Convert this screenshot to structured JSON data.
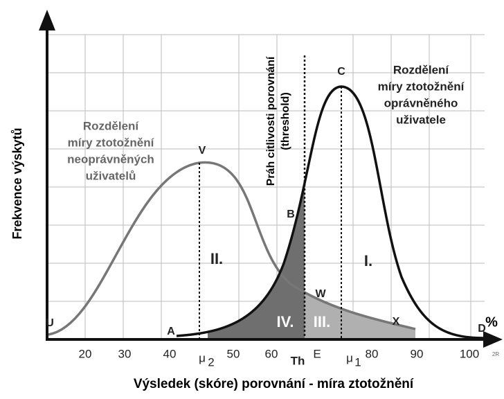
{
  "y_axis_label": "Frekvence výskytů",
  "x_axis_label": "Výsledek (skóre) porovnání - míra ztotožnění",
  "x_unit": "%",
  "x_ticks": [
    "20",
    "30",
    "40",
    "50",
    "60",
    "80",
    "90",
    "100"
  ],
  "markers": {
    "mu2": "μ",
    "mu2_sub": "2",
    "th": "Th",
    "e": "E",
    "mu1": "μ",
    "mu1_sub": "1"
  },
  "points": {
    "u": "U",
    "a": "A",
    "v": "V",
    "b": "B",
    "c": "C",
    "w": "W",
    "x": "X",
    "d": "D"
  },
  "regions": {
    "i": "I.",
    "ii": "II.",
    "iii": "III.",
    "iv": "IV."
  },
  "impostor_caption": [
    "Rozdělení",
    "míry ztotožnění",
    "neoprávněných",
    "uživatelů"
  ],
  "genuine_caption": [
    "Rozdělení",
    "míry ztotožnění",
    "oprávněného",
    "uživatele"
  ],
  "threshold_caption": [
    "Práh citlivosti porovnání",
    "(threshold)"
  ],
  "corner_note": "2R"
}
